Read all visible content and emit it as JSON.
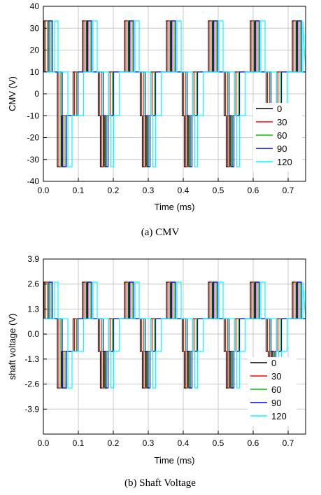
{
  "chart_data": [
    {
      "type": "line",
      "title": "",
      "caption": "(a)  CMV",
      "xlabel": "Time (ms)",
      "ylabel": "CMV (V)",
      "xlim": [
        0.0,
        0.75
      ],
      "ylim": [
        -40,
        40
      ],
      "xticks": [
        "0.0",
        "0.1",
        "0.2",
        "0.3",
        "0.4",
        "0.5",
        "0.6",
        "0.7"
      ],
      "yticks": [
        "-40",
        "-30",
        "-20",
        "-10",
        "0",
        "10",
        "20",
        "30",
        "40"
      ],
      "grid": true,
      "legend_position": "bottom-right",
      "levels": {
        "high": 33.3,
        "mid_high": 10,
        "mid_low": -10,
        "low": -33.3
      },
      "pulse_period_ms": 0.12,
      "series": [
        {
          "name": "0",
          "color": "#000000",
          "delay_ms": 0.0
        },
        {
          "name": "30",
          "color": "#ff0000",
          "delay_ms": 0.004
        },
        {
          "name": "60",
          "color": "#00c000",
          "delay_ms": 0.01
        },
        {
          "name": "90",
          "color": "#0000ff",
          "delay_ms": 0.014
        },
        {
          "name": "120",
          "color": "#00ffff",
          "delay_ms": 0.03
        }
      ]
    },
    {
      "type": "line",
      "title": "",
      "caption": "(b)  Shaft  Voltage",
      "xlabel": "Time (ms)",
      "ylabel": "shaft voltage (V)",
      "xlim": [
        0.0,
        0.75
      ],
      "ylim": [
        -5.2,
        3.9
      ],
      "xticks": [
        "0.0",
        "0.1",
        "0.2",
        "0.3",
        "0.4",
        "0.5",
        "0.6",
        "0.7"
      ],
      "yticks": [
        "-3.9",
        "-2.6",
        "-1.3",
        "0.0",
        "1.3",
        "2.6",
        "3.9"
      ],
      "grid": true,
      "legend_position": "bottom-right",
      "levels": {
        "high": 2.7,
        "mid_high": 0.8,
        "mid_low": -0.9,
        "low": -2.8
      },
      "pulse_period_ms": 0.12,
      "series": [
        {
          "name": "0",
          "color": "#000000",
          "delay_ms": 0.0
        },
        {
          "name": "30",
          "color": "#ff0000",
          "delay_ms": 0.004
        },
        {
          "name": "60",
          "color": "#00c000",
          "delay_ms": 0.01
        },
        {
          "name": "90",
          "color": "#0000ff",
          "delay_ms": 0.014
        },
        {
          "name": "120",
          "color": "#00ffff",
          "delay_ms": 0.03
        }
      ]
    }
  ]
}
